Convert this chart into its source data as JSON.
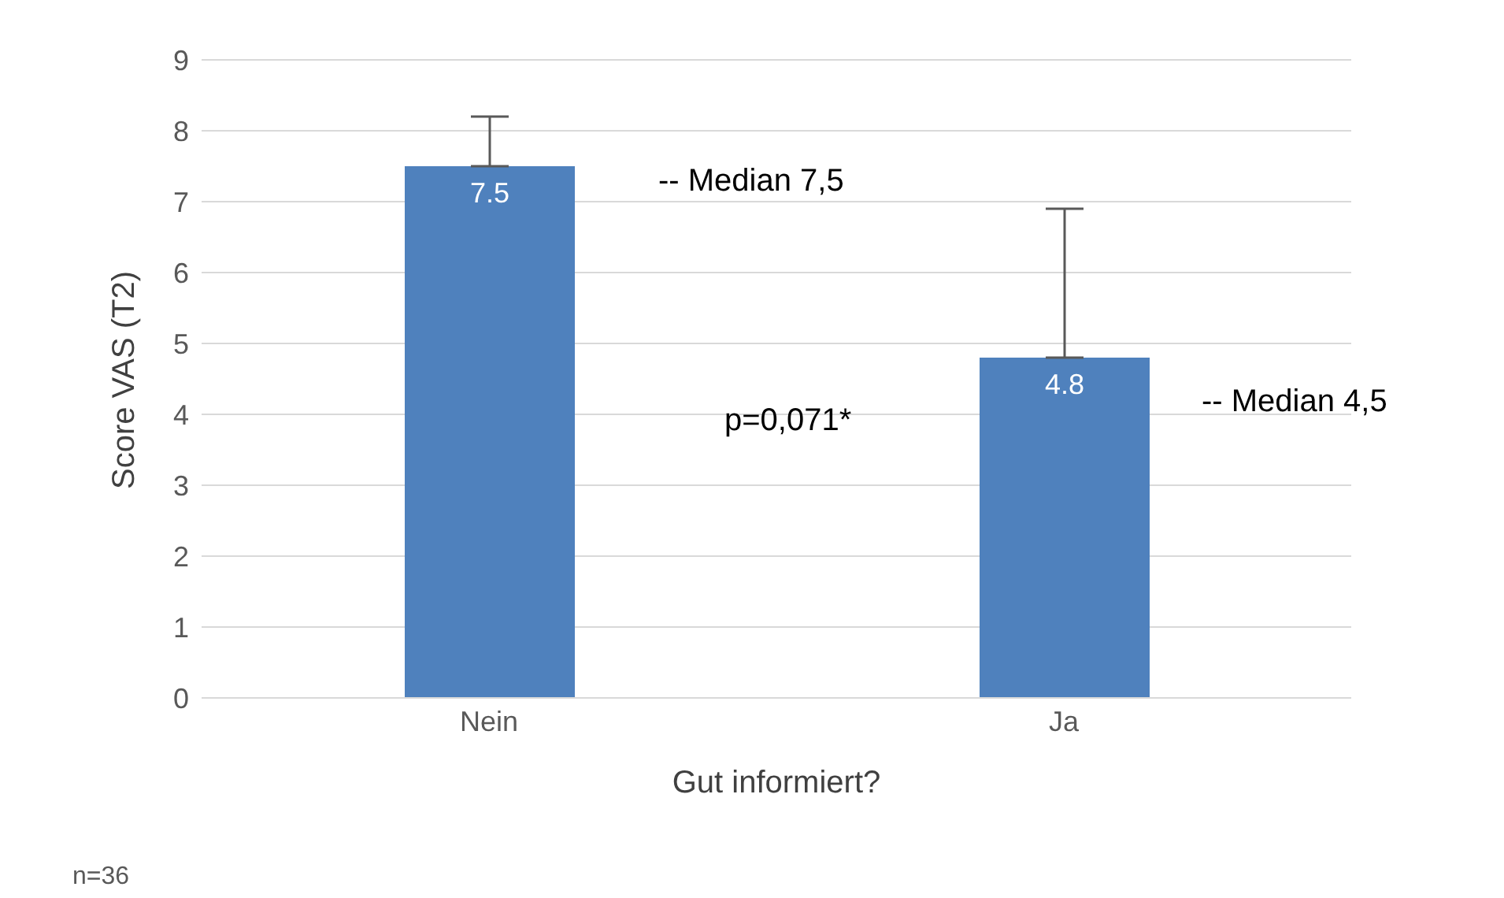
{
  "chart_data": {
    "type": "bar",
    "xlabel": "Gut informiert?",
    "ylabel": "Score VAS (T2)",
    "categories": [
      "Nein",
      "Ja"
    ],
    "values": [
      7.5,
      4.8
    ],
    "errors": [
      [
        7.5,
        8.2
      ],
      [
        4.8,
        6.9
      ]
    ],
    "color": "#4f81bd",
    "data_labels": true,
    "ylim": [
      0,
      9
    ],
    "yticks": [
      0,
      1,
      2,
      3,
      4,
      5,
      6,
      7,
      8,
      9
    ],
    "grid": "y",
    "legend": false,
    "annotations": [
      "-- Median 7,5",
      "-- Median 4,5",
      "p=0,071*",
      "n=36"
    ]
  }
}
